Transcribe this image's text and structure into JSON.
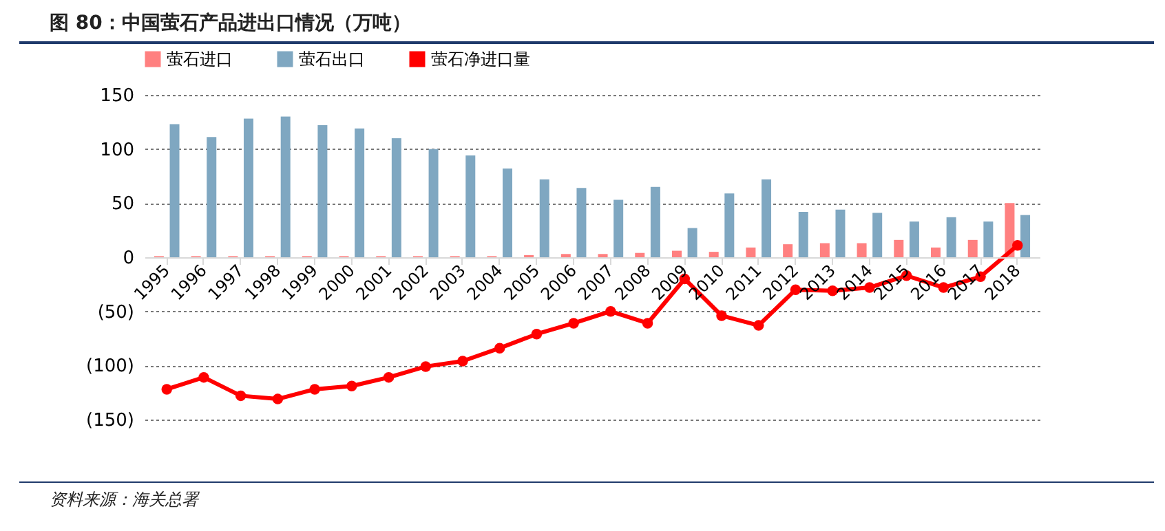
{
  "chart_data": {
    "type": "bar",
    "title": "图 80：中国萤石产品进出口情况（万吨）",
    "categories": [
      "1995",
      "1996",
      "1997",
      "1998",
      "1999",
      "2000",
      "2001",
      "2002",
      "2003",
      "2004",
      "2005",
      "2006",
      "2007",
      "2008",
      "2009",
      "2010",
      "2011",
      "2012",
      "2013",
      "2014",
      "2015",
      "2016",
      "2017",
      "2018"
    ],
    "series": [
      {
        "name": "萤石进口",
        "color": "#ff8080",
        "values": [
          1,
          1,
          1,
          1,
          1,
          1,
          1,
          1,
          1,
          1,
          2,
          3,
          3,
          4,
          6,
          5,
          9,
          12,
          13,
          13,
          16,
          9,
          16,
          50
        ]
      },
      {
        "name": "萤石出口",
        "color": "#7fa7c1",
        "values": [
          123,
          111,
          128,
          130,
          122,
          119,
          110,
          100,
          94,
          82,
          72,
          64,
          53,
          65,
          27,
          59,
          72,
          42,
          44,
          41,
          33,
          37,
          33,
          39
        ]
      },
      {
        "name": "萤石净进口量",
        "type": "line",
        "color": "#ff0000",
        "values": [
          -122,
          -111,
          -128,
          -131,
          -122,
          -119,
          -111,
          -101,
          -96,
          -84,
          -71,
          -61,
          -50,
          -61,
          -20,
          -54,
          -63,
          -30,
          -31,
          -28,
          -17,
          -28,
          -18,
          11
        ]
      }
    ],
    "ylim": [
      -150,
      150
    ],
    "yticks": [
      {
        "value": -150,
        "label": "(150)"
      },
      {
        "value": -100,
        "label": "(100)"
      },
      {
        "value": -50,
        "label": "(50)"
      },
      0,
      50,
      100,
      150
    ],
    "grid": "y",
    "legend": "top",
    "marker": "circle",
    "annotations": [
      "资料来源：海关总署"
    ]
  }
}
